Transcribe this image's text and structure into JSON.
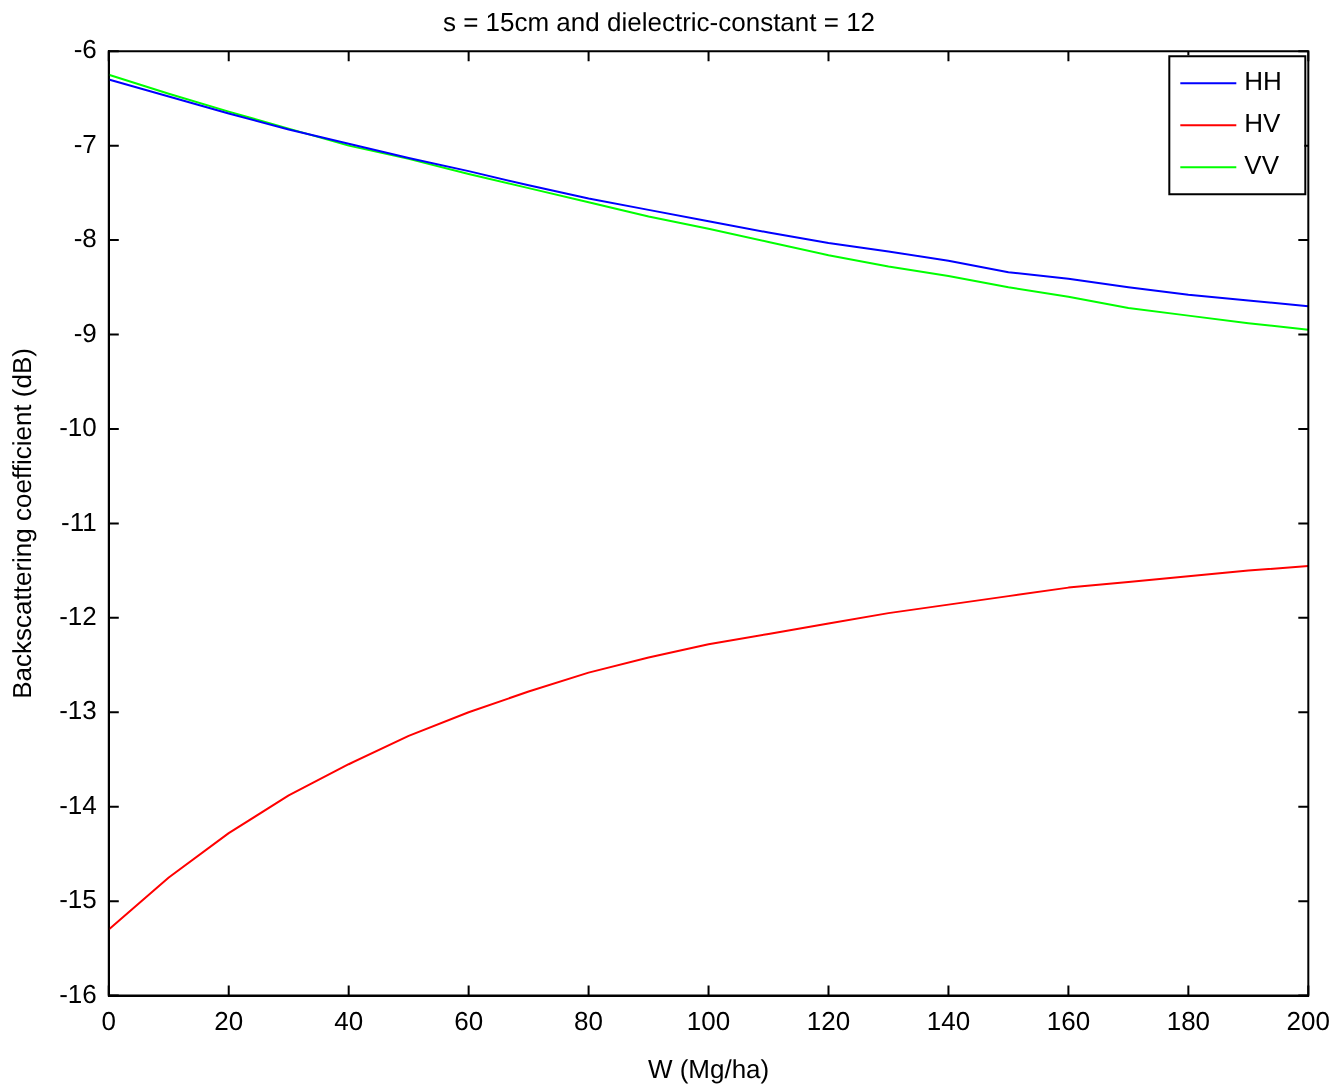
{
  "chart_data": {
    "type": "line",
    "title": "s = 15cm and dielectric-constant = 12",
    "xlabel": "W (Mg/ha)",
    "ylabel": "Backscattering coefficient (dB)",
    "x": [
      0,
      10,
      20,
      30,
      40,
      50,
      60,
      70,
      80,
      90,
      100,
      110,
      120,
      130,
      140,
      150,
      160,
      170,
      180,
      190,
      200
    ],
    "series": [
      {
        "name": "HH",
        "color": "#0000ff",
        "values": [
          -6.3,
          -6.48,
          -6.66,
          -6.83,
          -6.98,
          -7.13,
          -7.27,
          -7.42,
          -7.56,
          -7.68,
          -7.8,
          -7.92,
          -8.03,
          -8.12,
          -8.22,
          -8.34,
          -8.41,
          -8.5,
          -8.58,
          -8.64,
          -8.7
        ]
      },
      {
        "name": "HV",
        "color": "#ff0000",
        "values": [
          -15.3,
          -14.75,
          -14.28,
          -13.88,
          -13.55,
          -13.25,
          -13.0,
          -12.78,
          -12.58,
          -12.42,
          -12.28,
          -12.17,
          -12.06,
          -11.95,
          -11.86,
          -11.77,
          -11.68,
          -11.62,
          -11.56,
          -11.5,
          -11.45
        ]
      },
      {
        "name": "VV",
        "color": "#00ff00",
        "values": [
          -6.25,
          -6.45,
          -6.64,
          -6.82,
          -7.0,
          -7.14,
          -7.3,
          -7.45,
          -7.6,
          -7.75,
          -7.88,
          -8.02,
          -8.16,
          -8.28,
          -8.38,
          -8.5,
          -8.6,
          -8.72,
          -8.8,
          -8.88,
          -8.95
        ]
      }
    ],
    "xlim": [
      0,
      200
    ],
    "xticks": [
      0,
      20,
      40,
      60,
      80,
      100,
      120,
      140,
      160,
      180,
      200
    ],
    "ylim": [
      -16,
      -6
    ],
    "yticks": [
      -16,
      -15,
      -14,
      -13,
      -12,
      -11,
      -10,
      -9,
      -8,
      -7,
      -6
    ],
    "grid": false,
    "legend": "top right",
    "marker": "none",
    "line_style": "solid"
  }
}
